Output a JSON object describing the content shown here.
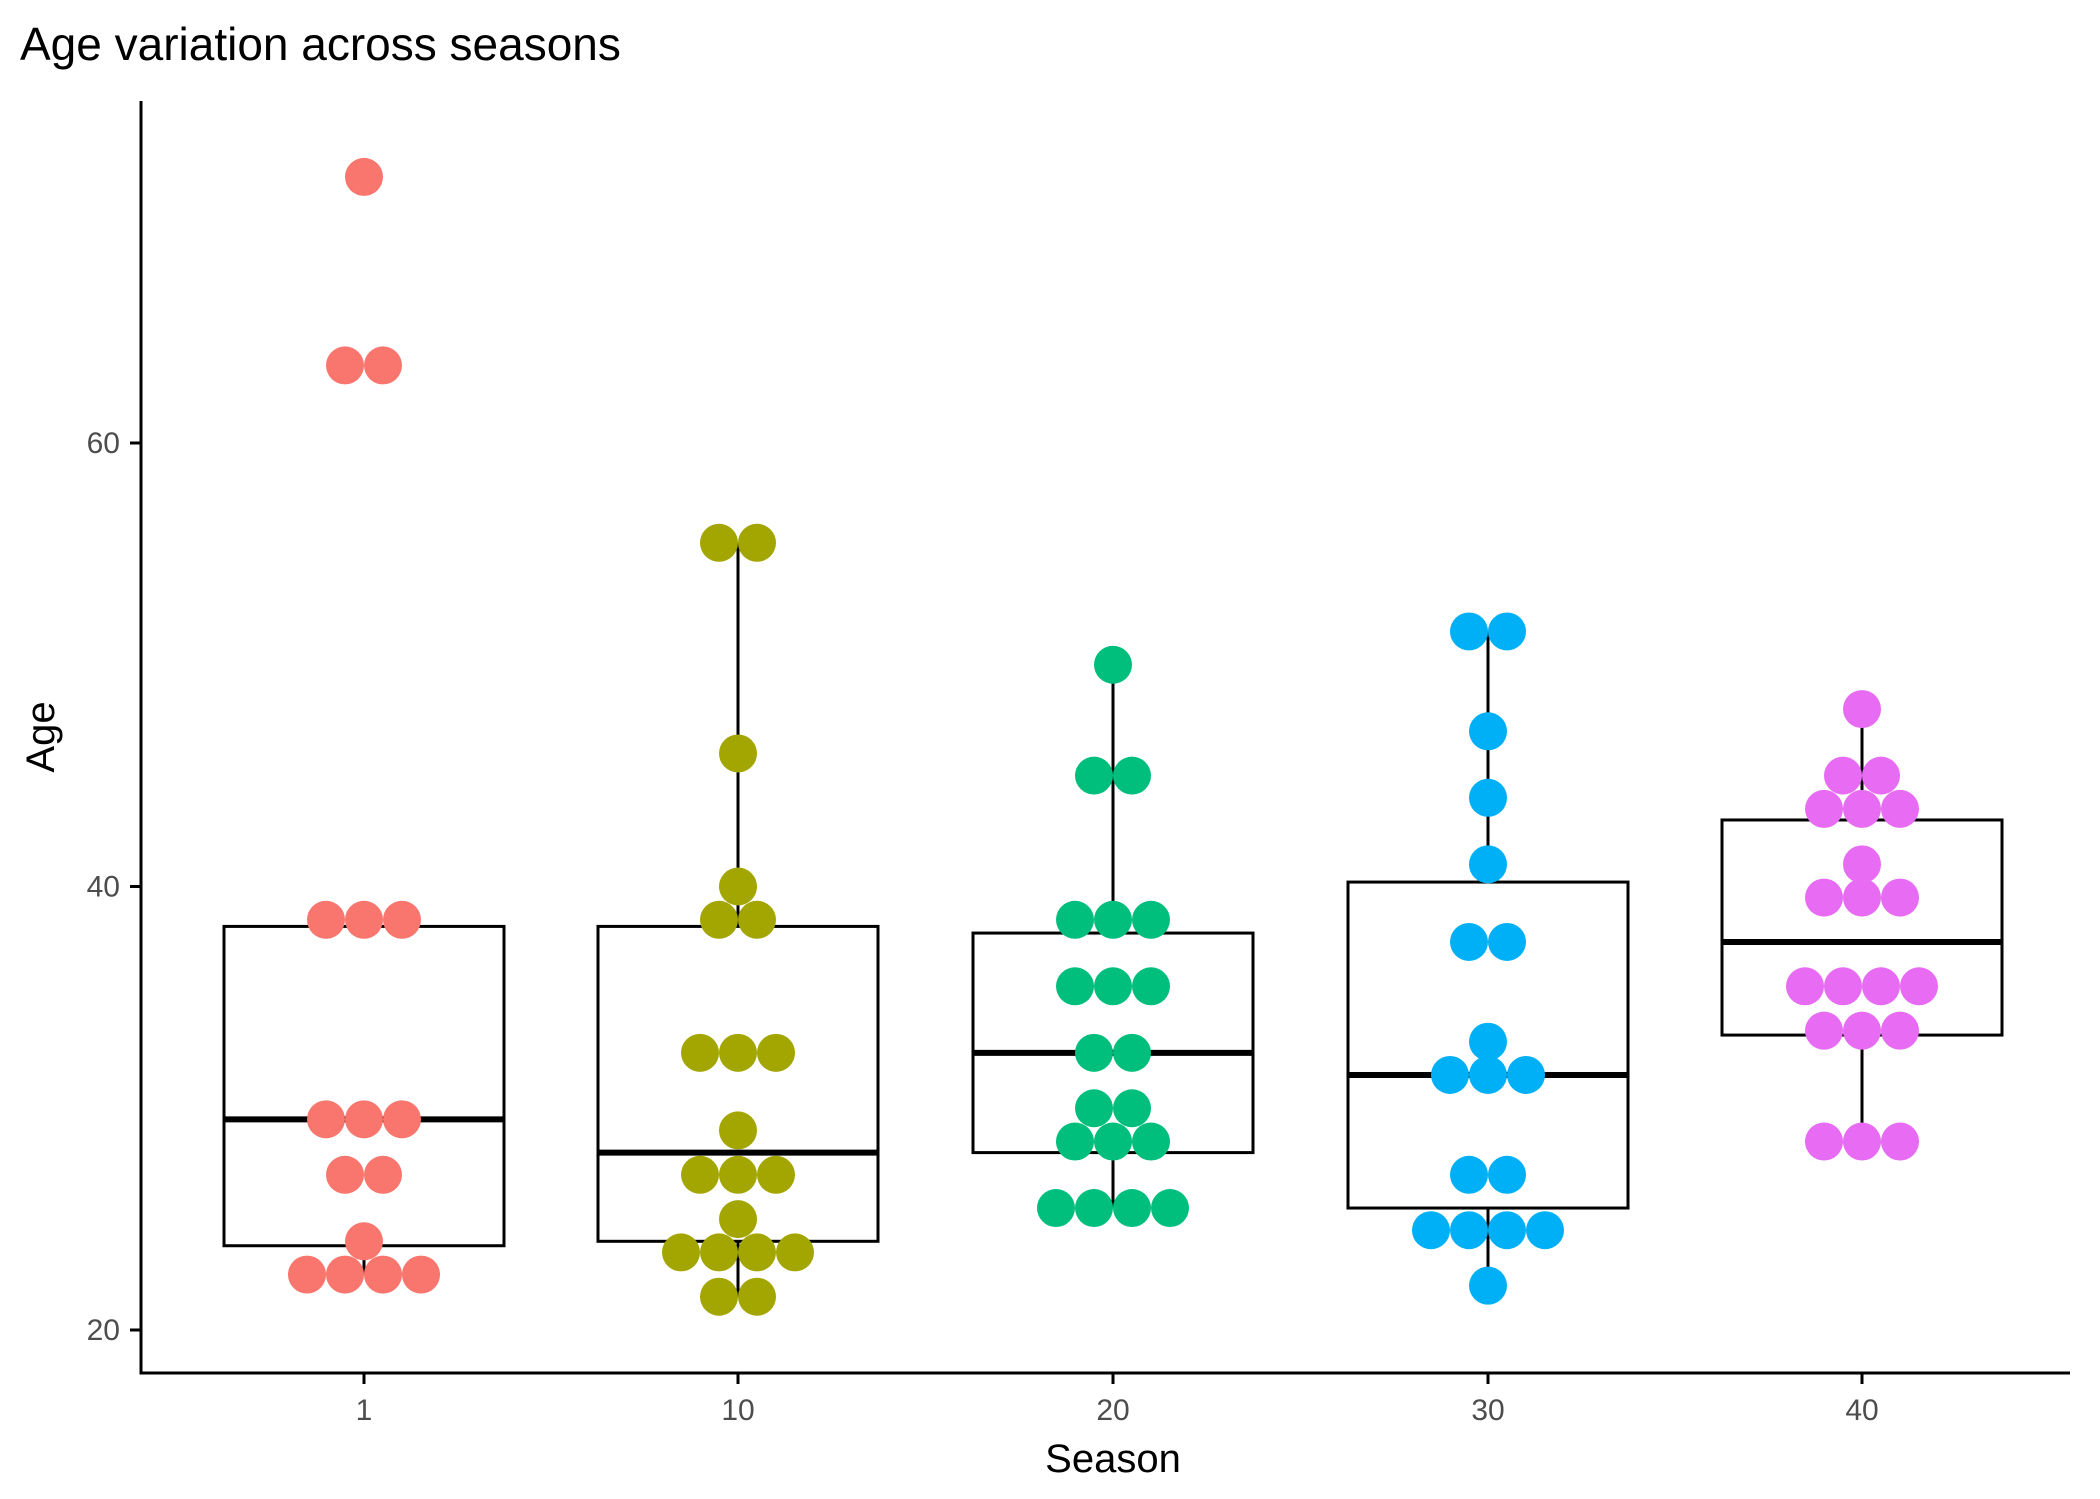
{
  "chart_data": {
    "type": "boxplot-dotplot",
    "title": "Age variation across seasons",
    "xlabel": "Season",
    "ylabel": "Age",
    "categories": [
      "1",
      "10",
      "20",
      "30",
      "40"
    ],
    "ylim": [
      18,
      75
    ],
    "yticks": [
      20,
      40,
      60
    ],
    "grid": false,
    "legend": "none",
    "colors": [
      "#F8766D",
      "#A3A500",
      "#00BF7D",
      "#00B0F6",
      "#E76BF3"
    ],
    "boxes": [
      {
        "category": "1",
        "min": 22.5,
        "q1": 23.8,
        "median": 29.5,
        "q3": 38.2,
        "max": 38.5
      },
      {
        "category": "10",
        "min": 21.5,
        "q1": 24.0,
        "median": 28.0,
        "q3": 38.2,
        "max": 55.5
      },
      {
        "category": "20",
        "min": 25.5,
        "q1": 28.0,
        "median": 32.5,
        "q3": 37.9,
        "max": 50.0
      },
      {
        "category": "30",
        "min": 22.0,
        "q1": 25.5,
        "median": 31.5,
        "q3": 40.2,
        "max": 51.5
      },
      {
        "category": "40",
        "min": 28.5,
        "q1": 33.3,
        "median": 37.5,
        "q3": 43.0,
        "max": 48.0
      }
    ],
    "series": [
      {
        "category": "1",
        "values": [
          72,
          63.5,
          63.5,
          38.5,
          38.5,
          38.5,
          29.5,
          29.5,
          29.5,
          27,
          27,
          24,
          22.5,
          22.5,
          22.5,
          22.5
        ]
      },
      {
        "category": "10",
        "values": [
          55.5,
          55.5,
          46,
          40,
          38.5,
          38.5,
          32.5,
          32.5,
          32.5,
          29,
          27,
          27,
          27,
          25,
          23.5,
          23.5,
          23.5,
          23.5,
          21.5,
          21.5
        ]
      },
      {
        "category": "20",
        "values": [
          50,
          45,
          45,
          38.5,
          38.5,
          38.5,
          35.5,
          35.5,
          35.5,
          32.5,
          32.5,
          30,
          30,
          28.5,
          28.5,
          28.5,
          25.5,
          25.5,
          25.5,
          25.5
        ]
      },
      {
        "category": "30",
        "values": [
          51.5,
          51.5,
          47,
          44,
          41,
          37.5,
          37.5,
          33,
          31.5,
          31.5,
          31.5,
          27,
          27,
          24.5,
          24.5,
          24.5,
          24.5,
          22
        ]
      },
      {
        "category": "40",
        "values": [
          48,
          45,
          45,
          43.5,
          43.5,
          43.5,
          41,
          39.5,
          39.5,
          39.5,
          35.5,
          35.5,
          35.5,
          35.5,
          33.5,
          33.5,
          33.5,
          28.5,
          28.5,
          28.5
        ]
      }
    ]
  }
}
